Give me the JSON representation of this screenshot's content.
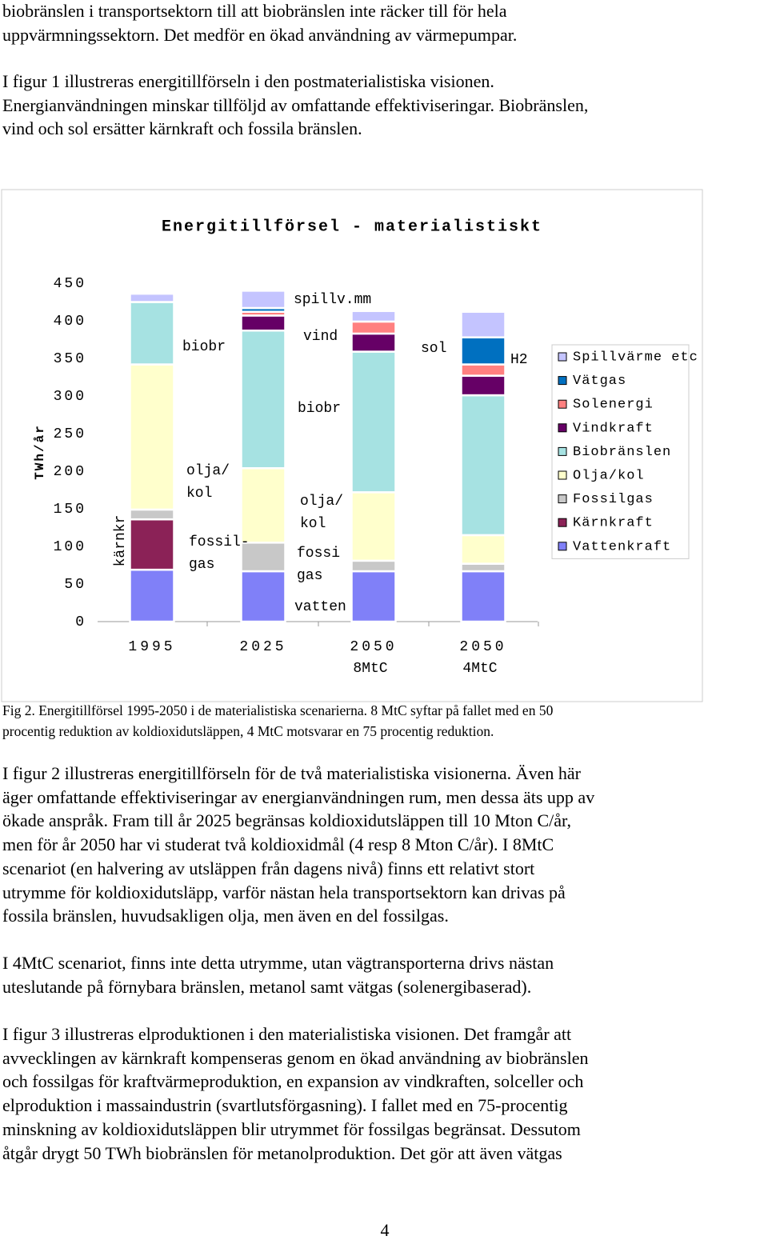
{
  "paragraphs": [
    [
      "biobränslen i transportsektorn till att biobränslen inte räcker till för hela",
      "uppvärmningssektorn. Det medför en ökad användning av värmepumpar."
    ],
    [
      "I figur 1 illustreras energitillförseln i den postmaterialistiska visionen.",
      "Energianvändningen minskar tillföljd av omfattande effektiviseringar. Biobränslen,",
      "vind och sol ersätter kärnkraft och fossila bränslen."
    ]
  ],
  "chart_data": {
    "type": "stacked-bar",
    "title": "Energitillförsel - materialistiskt",
    "ylabel": "TWh/år",
    "categories": [
      "1995",
      "2025",
      "2050",
      "2050"
    ],
    "category_sublabels": [
      null,
      null,
      "8MtC",
      "4MtC"
    ],
    "ylim": [
      0,
      450
    ],
    "yticks": [
      0,
      50,
      100,
      150,
      200,
      250,
      300,
      350,
      400,
      450
    ],
    "series": [
      {
        "name": "Vattenkraft",
        "color": "#8080f8",
        "values": [
          69,
          67,
          67,
          67
        ]
      },
      {
        "name": "Kärnkraft",
        "color": "#8b2257",
        "values": [
          67,
          0,
          0,
          0
        ]
      },
      {
        "name": "Fossilgas",
        "color": "#c8c8c8",
        "values": [
          13,
          38,
          14,
          10
        ]
      },
      {
        "name": "Olja/kol",
        "color": "#ffffcc",
        "values": [
          193,
          99,
          91,
          38
        ]
      },
      {
        "name": "Biobränslen",
        "color": "#a6e2e2",
        "values": [
          83,
          183,
          187,
          186
        ]
      },
      {
        "name": "Vindkraft",
        "color": "#660066",
        "values": [
          0,
          20,
          24,
          26
        ]
      },
      {
        "name": "Solenergi",
        "color": "#ff8080",
        "values": [
          0,
          5,
          16,
          15
        ]
      },
      {
        "name": "Vätgas",
        "color": "#0070c0",
        "values": [
          0,
          5,
          0,
          36
        ]
      },
      {
        "name": "Spillvärme etc",
        "color": "#c4c4ff",
        "values": [
          11,
          23,
          14,
          34
        ]
      }
    ],
    "legend": "right",
    "annotations": [
      [
        "spillv.mm"
      ],
      [
        "vind"
      ],
      [
        "biobr"
      ],
      [
        "biobr"
      ],
      [
        "olja/",
        "kol"
      ],
      [
        "olja/",
        "kol"
      ],
      [
        "fossil-",
        "gas"
      ],
      [
        "fossi",
        "gas"
      ],
      [
        "kärnkr"
      ],
      [
        "vatten"
      ],
      [
        "sol"
      ],
      [
        "H2"
      ]
    ]
  },
  "caption": [
    "Fig 2. Energitillförsel 1995-2050 i de materialistiska scenarierna. 8 MtC syftar på fallet med en 50",
    "procentig reduktion av koldioxidutsläppen, 4 MtC motsvarar en 75 procentig reduktion."
  ],
  "body": [
    [
      "I figur 2 illustreras energitillförseln för de två materialistiska visionerna. Även här",
      "äger omfattande effektiviseringar av energianvändningen rum, men dessa äts upp av",
      "ökade anspråk. Fram till år 2025 begränsas koldioxidutsläppen till 10 Mton C/år,",
      "men för år 2050 har vi studerat två koldioxidmål (4 resp 8 Mton C/år). I 8MtC",
      "scenariot (en halvering av utsläppen från dagens nivå) finns ett relativt stort",
      "utrymme för koldioxidutsläpp, varför nästan hela transportsektorn kan drivas på",
      "fossila bränslen, huvudsakligen olja, men även en del fossilgas."
    ],
    [
      "I 4MtC scenariot, finns inte detta utrymme, utan vägtransporterna drivs nästan",
      "uteslutande på förnybara bränslen, metanol samt vätgas (solenergibaserad)."
    ],
    [
      "I figur 3 illustreras elproduktionen i den materialistiska visionen. Det framgår att",
      "avvecklingen av kärnkraft kompenseras genom en ökad användning av biobränslen",
      "och fossilgas för kraftvärmeproduktion, en expansion av vindkraften, solceller och",
      "elproduktion i massaindustrin (svartlutsförgasning). I fallet med en 75-procentig",
      "minskning av koldioxidutsläppen blir utrymmet för fossilgas begränsat. Dessutom",
      "åtgår drygt 50 TWh biobränslen för metanolproduktion. Det gör att även vätgas"
    ]
  ],
  "page_number": "4"
}
